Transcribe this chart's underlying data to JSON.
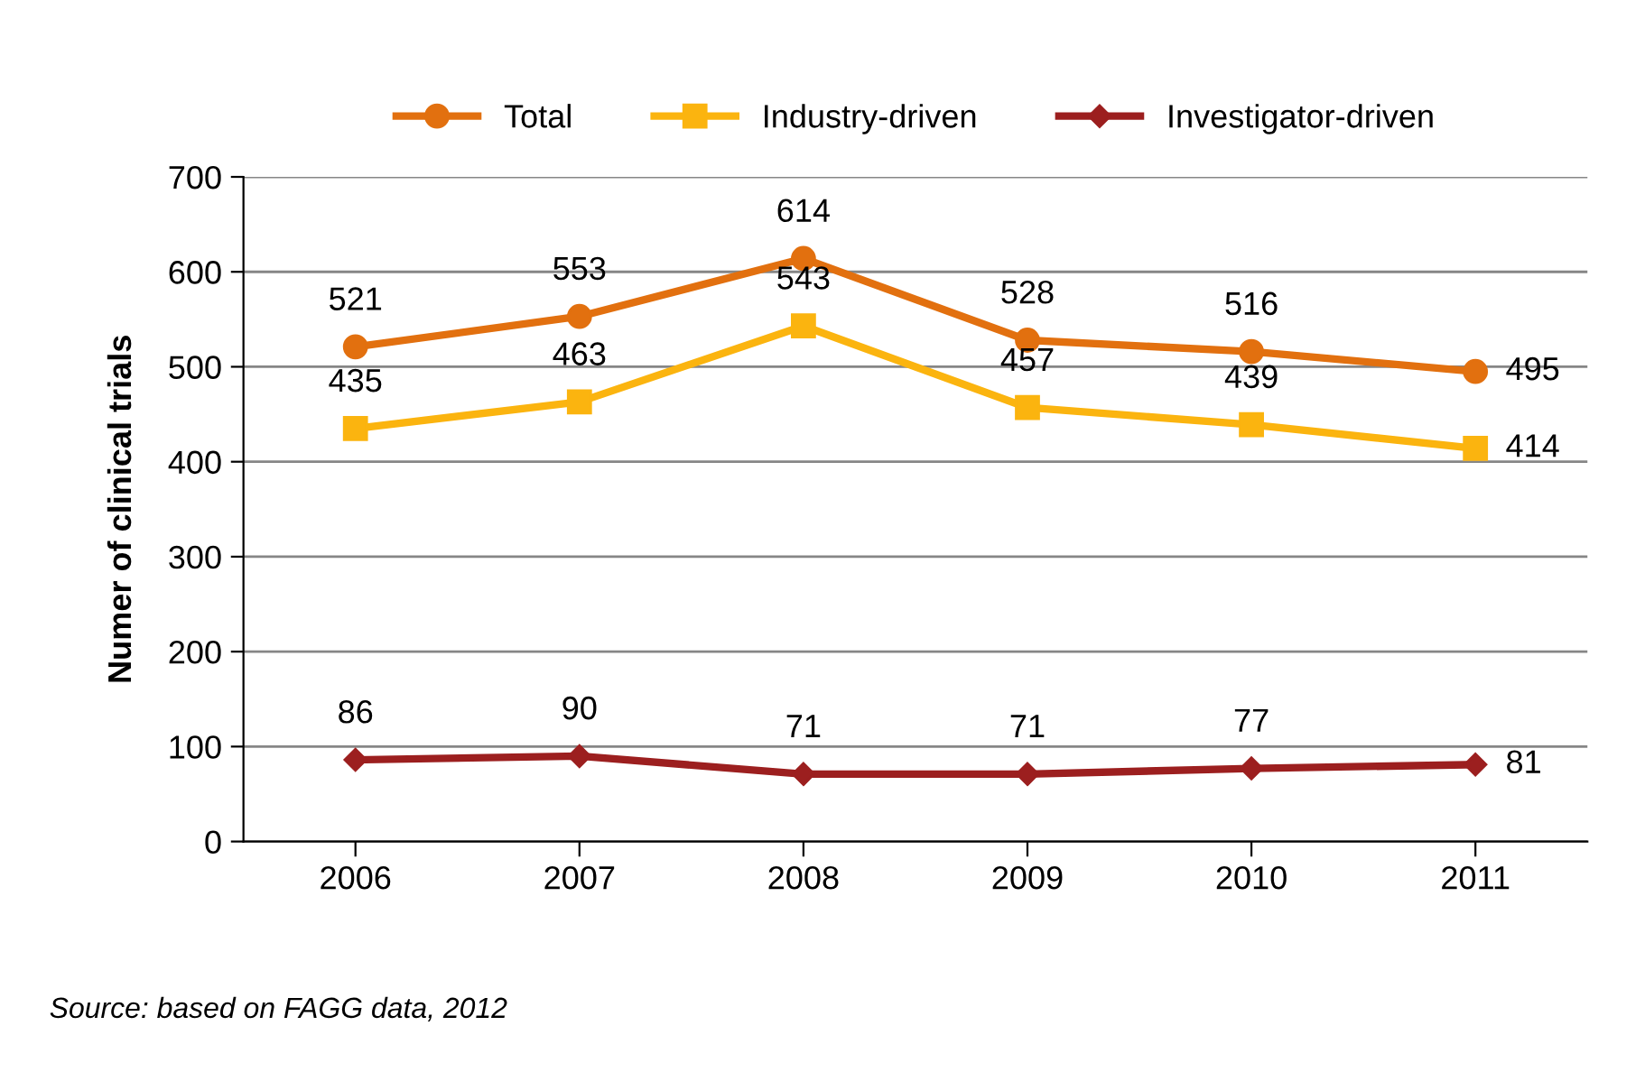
{
  "chart_data": {
    "type": "line",
    "ylabel": "Numer of clinical trials",
    "categories": [
      "2006",
      "2007",
      "2008",
      "2009",
      "2010",
      "2011"
    ],
    "series": [
      {
        "name": "Total",
        "color": "#e2700f",
        "marker": "circle",
        "values": [
          521,
          553,
          614,
          528,
          516,
          495
        ]
      },
      {
        "name": "Industry-driven",
        "color": "#fbb40f",
        "marker": "square",
        "values": [
          435,
          463,
          543,
          457,
          439,
          414
        ]
      },
      {
        "name": "Investigator-driven",
        "color": "#9c1f1f",
        "marker": "diamond",
        "values": [
          86,
          90,
          71,
          71,
          77,
          81
        ]
      }
    ],
    "ylim": [
      0,
      700
    ],
    "yticks": [
      0,
      100,
      200,
      300,
      400,
      500,
      600,
      700
    ],
    "grid": "y",
    "legend": "top",
    "data_labels": true,
    "line_style": "solid",
    "annotations": [
      "Source: based on FAGG data, 2012"
    ]
  }
}
